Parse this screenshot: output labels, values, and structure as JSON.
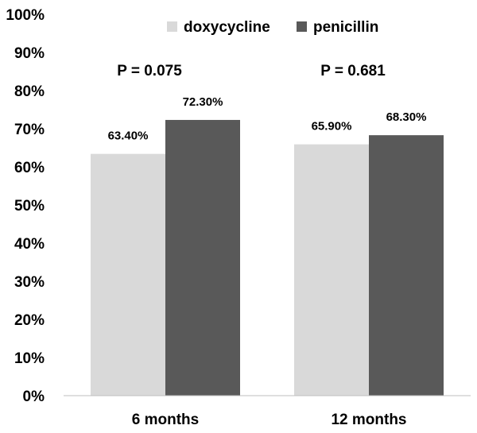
{
  "chart_data": {
    "type": "bar",
    "categories": [
      "6 months",
      "12 months"
    ],
    "series": [
      {
        "name": "doxycycline",
        "color": "#d9d9d9",
        "values": [
          63.4,
          65.9
        ],
        "labels": [
          "63.40%",
          "65.90%"
        ]
      },
      {
        "name": "penicillin",
        "color": "#595959",
        "values": [
          72.3,
          68.3
        ],
        "labels": [
          "72.30%",
          "68.30%"
        ]
      }
    ],
    "ylim": [
      0,
      100
    ],
    "yticks": [
      "0%",
      "10%",
      "20%",
      "30%",
      "40%",
      "50%",
      "60%",
      "70%",
      "80%",
      "90%",
      "100%"
    ],
    "annotations": [
      "P = 0.075",
      "P = 0.681"
    ],
    "grid": false,
    "legend_position": "top"
  }
}
